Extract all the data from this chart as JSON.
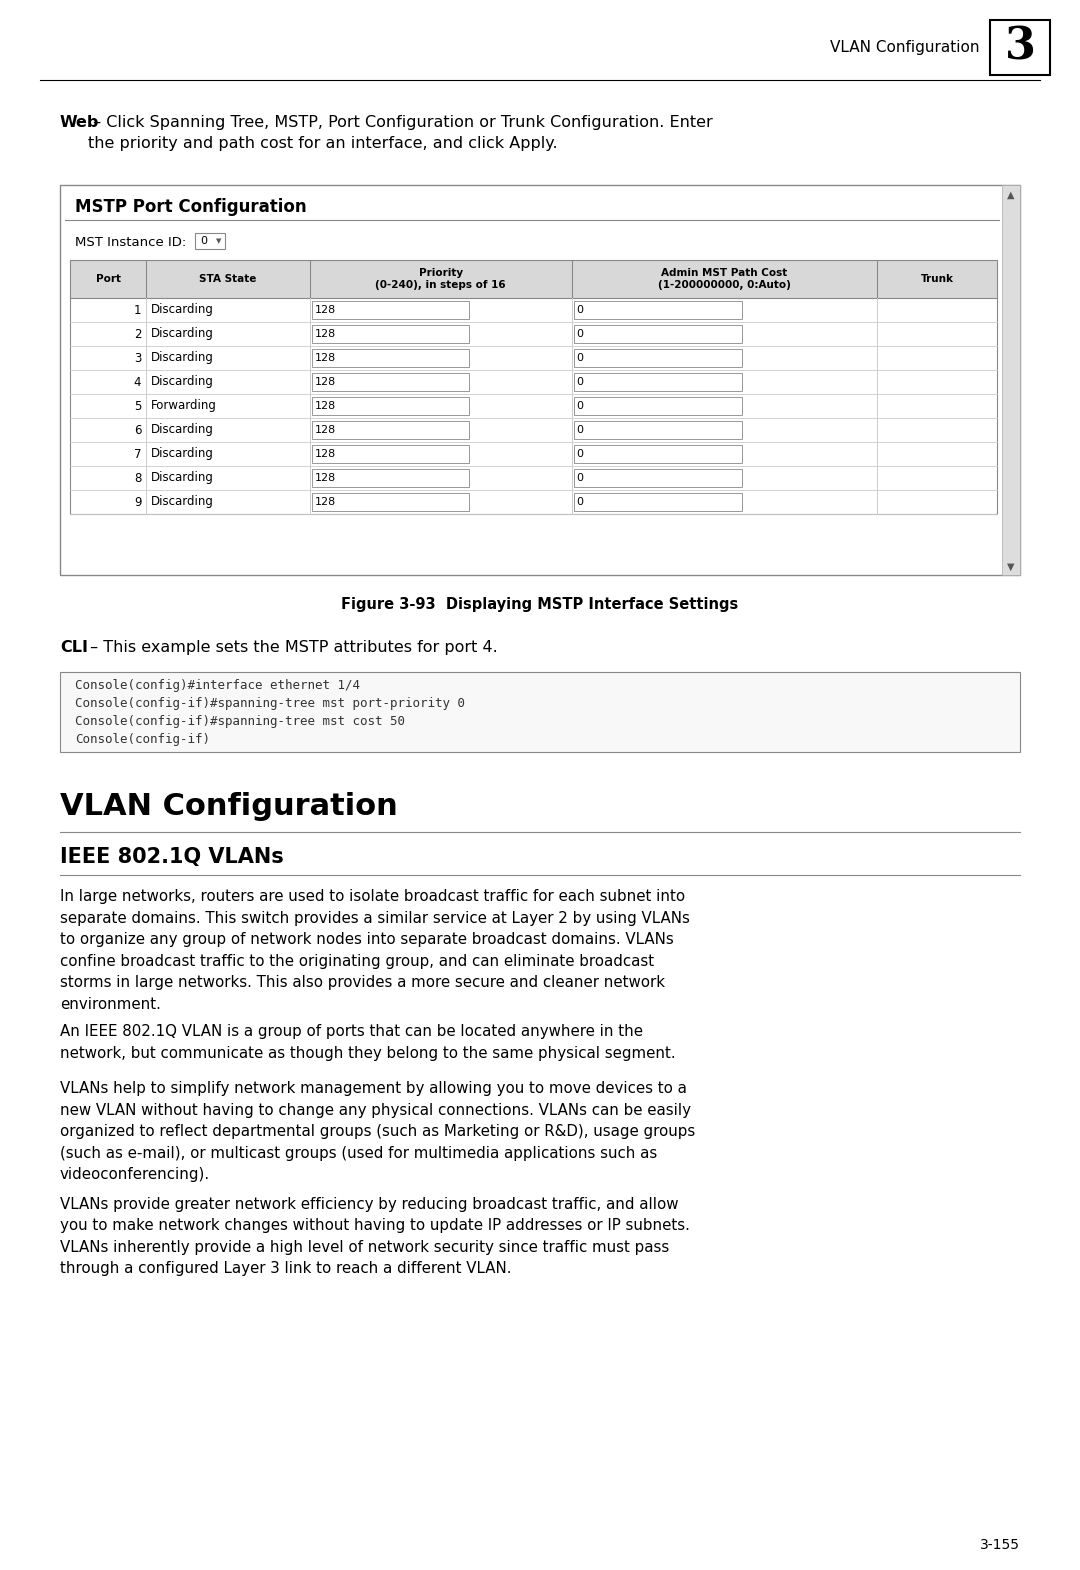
{
  "page_bg": "#ffffff",
  "header_text": "VLAN Configuration",
  "header_number": "3",
  "web_bold": "Web",
  "web_text": " – Click Spanning Tree, MSTP, Port Configuration or Trunk Configuration. Enter\nthe priority and path cost for an interface, and click Apply.",
  "mstp_title": "MSTP Port Configuration",
  "mst_label": "MST Instance ID:",
  "mst_value": "0",
  "table_headers": [
    "Port",
    "STA State",
    "Priority\n(0-240), in steps of 16",
    "Admin MST Path Cost\n(1-200000000, 0:Auto)",
    "Trunk"
  ],
  "table_rows": [
    [
      "1",
      "Discarding",
      "128",
      "0",
      ""
    ],
    [
      "2",
      "Discarding",
      "128",
      "0",
      ""
    ],
    [
      "3",
      "Discarding",
      "128",
      "0",
      ""
    ],
    [
      "4",
      "Discarding",
      "128",
      "0",
      ""
    ],
    [
      "5",
      "Forwarding",
      "128",
      "0",
      ""
    ],
    [
      "6",
      "Discarding",
      "128",
      "0",
      ""
    ],
    [
      "7",
      "Discarding",
      "128",
      "0",
      ""
    ],
    [
      "8",
      "Discarding",
      "128",
      "0",
      ""
    ],
    [
      "9",
      "Discarding",
      "128",
      "0",
      ""
    ]
  ],
  "figure_caption": "Figure 3-93  Displaying MSTP Interface Settings",
  "cli_bold": "CLI",
  "cli_text": " – This example sets the MSTP attributes for port 4.",
  "cli_code": "Console(config)#interface ethernet 1/4\nConsole(config-if)#spanning-tree mst port-priority 0\nConsole(config-if)#spanning-tree mst cost 50\nConsole(config-if)",
  "section_title": "VLAN Configuration",
  "subsection_title": "IEEE 802.1Q VLANs",
  "para1": "In large networks, routers are used to isolate broadcast traffic for each subnet into\nseparate domains. This switch provides a similar service at Layer 2 by using VLANs\nto organize any group of network nodes into separate broadcast domains. VLANs\nconfine broadcast traffic to the originating group, and can eliminate broadcast\nstorms in large networks. This also provides a more secure and cleaner network\nenvironment.",
  "para2": "An IEEE 802.1Q VLAN is a group of ports that can be located anywhere in the\nnetwork, but communicate as though they belong to the same physical segment.",
  "para3": "VLANs help to simplify network management by allowing you to move devices to a\nnew VLAN without having to change any physical connections. VLANs can be easily\norganized to reflect departmental groups (such as Marketing or R&D), usage groups\n(such as e-mail), or multicast groups (used for multimedia applications such as\nvideoconferencing).",
  "para4": "VLANs provide greater network efficiency by reducing broadcast traffic, and allow\nyou to make network changes without having to update IP addresses or IP subnets.\nVLANs inherently provide a high level of network security since traffic must pass\nthrough a configured Layer 3 link to reach a different VLAN.",
  "footer_text": "3-155",
  "text_color": "#000000",
  "code_bg": "#f5f5f5",
  "table_border": "#888888",
  "table_header_bg": "#e8e8e8"
}
